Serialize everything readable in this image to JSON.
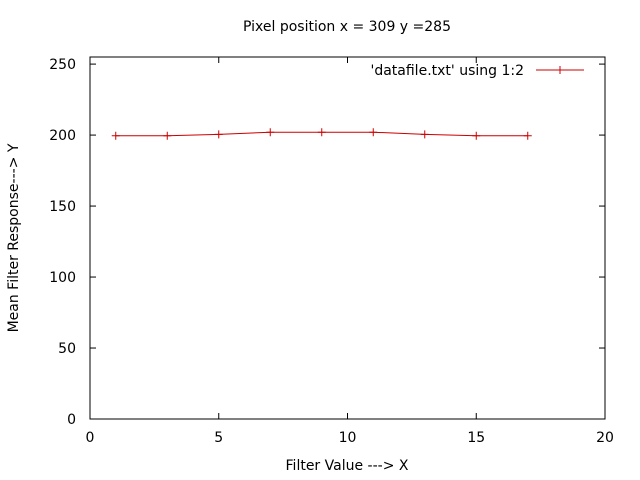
{
  "chart_data": {
    "type": "line",
    "title": "Pixel position x = 309 y =285",
    "xlabel": "Filter Value ---> X",
    "ylabel": "Mean Filter Response---> Y",
    "xlim": [
      0,
      20
    ],
    "ylim": [
      0,
      255
    ],
    "xticks": [
      0,
      5,
      10,
      15,
      20
    ],
    "yticks": [
      0,
      50,
      100,
      150,
      200,
      250
    ],
    "grid": false,
    "legend_position": "top-right",
    "series": [
      {
        "name": "'datafile.txt' using 1:2",
        "color": "#cc0000",
        "marker": "plus",
        "x": [
          1,
          3,
          5,
          7,
          9,
          11,
          13,
          15,
          17
        ],
        "y": [
          199.5,
          199.5,
          200.5,
          202,
          202,
          202,
          200.5,
          199.5,
          199.5
        ]
      }
    ]
  }
}
